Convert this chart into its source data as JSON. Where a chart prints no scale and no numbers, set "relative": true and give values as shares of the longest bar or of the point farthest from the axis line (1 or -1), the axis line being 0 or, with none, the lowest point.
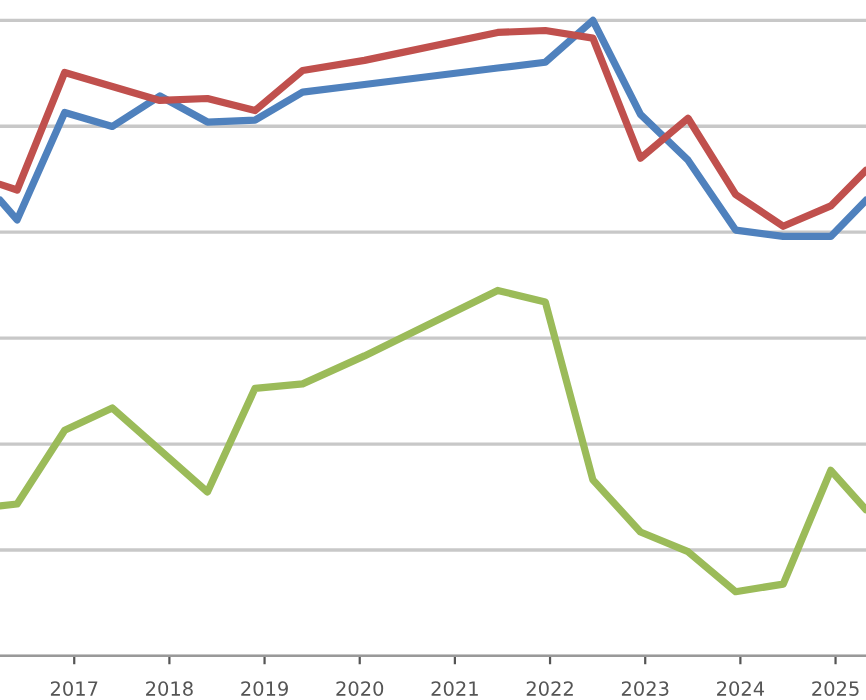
{
  "chart_data": {
    "type": "line",
    "relative": true,
    "grid": "y",
    "marker": "none",
    "line_style": "solid",
    "xlim": [
      2016.22,
      2025.32
    ],
    "xticks": [
      2017,
      2018,
      2019,
      2020,
      2021,
      2022,
      2023,
      2024,
      2025
    ],
    "series": [
      {
        "color": "#4f81bd",
        "x": [
          2016.22,
          2016.4,
          2016.9,
          2017.4,
          2017.9,
          2018.4,
          2018.9,
          2019.4,
          2020.05,
          2021.45,
          2021.95,
          2022.45,
          2022.95,
          2023.45,
          2023.95,
          2024.45,
          2024.95,
          2025.32
        ],
        "values": [
          0.717,
          0.686,
          0.855,
          0.833,
          0.881,
          0.84,
          0.843,
          0.887,
          0.899,
          0.925,
          0.934,
          1.0,
          0.852,
          0.78,
          0.67,
          0.66,
          0.66,
          0.717
        ]
      },
      {
        "color": "#c0504d",
        "x": [
          2016.22,
          2016.4,
          2016.9,
          2017.4,
          2017.9,
          2018.4,
          2018.9,
          2019.4,
          2020.05,
          2021.45,
          2021.95,
          2022.45,
          2022.95,
          2023.45,
          2023.95,
          2024.45,
          2024.95,
          2025.32
        ],
        "values": [
          0.742,
          0.733,
          0.918,
          0.896,
          0.874,
          0.877,
          0.858,
          0.921,
          0.937,
          0.981,
          0.984,
          0.972,
          0.783,
          0.846,
          0.726,
          0.676,
          0.708,
          0.764
        ]
      },
      {
        "color": "#9bbb59",
        "x": [
          2016.22,
          2016.4,
          2016.9,
          2017.4,
          2018.4,
          2018.9,
          2019.4,
          2020.05,
          2021.45,
          2021.95,
          2022.45,
          2022.95,
          2023.45,
          2023.95,
          2024.45,
          2024.95,
          2025.32
        ],
        "values": [
          0.236,
          0.239,
          0.355,
          0.39,
          0.258,
          0.421,
          0.428,
          0.472,
          0.575,
          0.557,
          0.277,
          0.195,
          0.164,
          0.101,
          0.113,
          0.292,
          0.23
        ]
      }
    ]
  }
}
